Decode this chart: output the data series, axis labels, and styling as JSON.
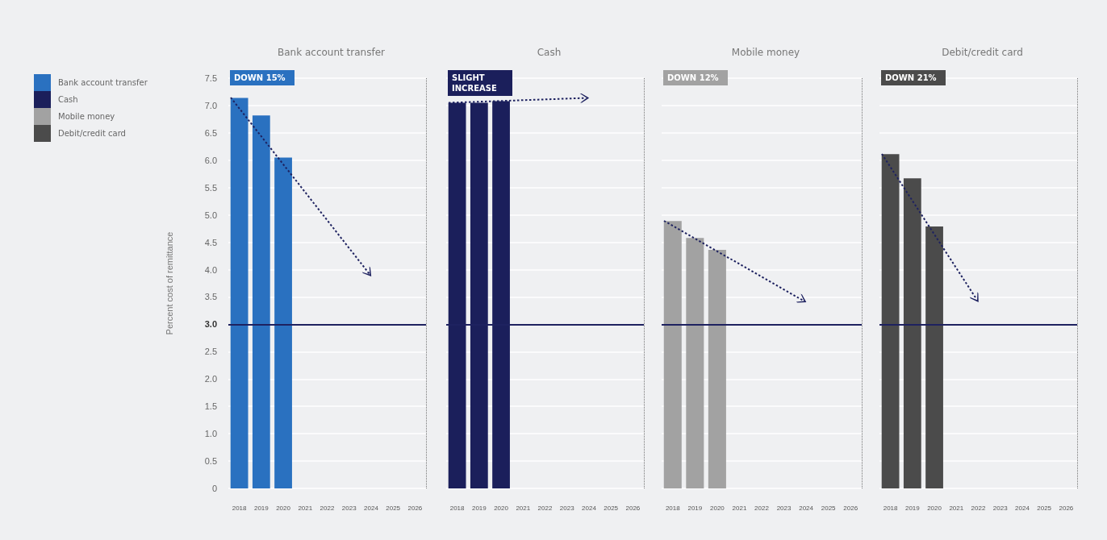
{
  "chart_data": [
    {
      "type": "bar",
      "title": "Bank account transfer",
      "ylabel": "Percent cost of remittance",
      "annotations": [
        "DOWN 15%"
      ],
      "categories": [
        "2018",
        "2019",
        "2020",
        "2021",
        "2022",
        "2023",
        "2024",
        "2025",
        "2026"
      ],
      "series": [
        {
          "name": "Bank account transfer",
          "color": "#2a71c0",
          "values": [
            7.14,
            6.82,
            6.05,
            null,
            null,
            null,
            null,
            null,
            null
          ]
        }
      ],
      "ylim": [
        0,
        7.5
      ],
      "yticks": [
        0,
        0.5,
        {
          "value": 1,
          "label": "1.0"
        },
        1.5,
        {
          "value": 2,
          "label": "2.0"
        },
        2.5,
        {
          "value": 3,
          "label": "3.0"
        },
        3.5,
        {
          "value": 4,
          "label": "4.0"
        },
        4.5,
        {
          "value": 5,
          "label": "5.0"
        },
        5.5,
        {
          "value": 6,
          "label": "6.0"
        },
        6.5,
        {
          "value": 7,
          "label": "7.0"
        },
        7.5
      ],
      "ref_lines": [
        {
          "axis": "y",
          "value": 3,
          "color": "#1e2260"
        }
      ],
      "grid": "y",
      "legend": "left"
    },
    {
      "type": "bar",
      "title": "Cash",
      "annotations": [
        "SLIGHT INCREASE"
      ],
      "categories": [
        "2018",
        "2019",
        "2020",
        "2021",
        "2022",
        "2023",
        "2024",
        "2025",
        "2026"
      ],
      "series": [
        {
          "name": "Cash",
          "color": "#1b1f5b",
          "values": [
            7.05,
            7.05,
            7.08,
            null,
            null,
            null,
            null,
            null,
            null
          ]
        }
      ],
      "ylim": [
        0,
        7.5
      ],
      "yticks": [
        0,
        0.5,
        1,
        1.5,
        2,
        2.5,
        3,
        3.5,
        4,
        4.5,
        5,
        5.5,
        6,
        6.5,
        7,
        7.5
      ],
      "ref_lines": [
        {
          "axis": "y",
          "value": 3,
          "color": "#1e2260"
        }
      ],
      "grid": "y",
      "legend": "left",
      "tick_labels": "x"
    },
    {
      "type": "bar",
      "title": "Mobile money",
      "annotations": [
        "DOWN 12%"
      ],
      "categories": [
        "2018",
        "2019",
        "2020",
        "2021",
        "2022",
        "2023",
        "2024",
        "2025",
        "2026"
      ],
      "series": [
        {
          "name": "Mobile money",
          "color": "#a2a2a2",
          "values": [
            4.89,
            4.58,
            4.36,
            null,
            null,
            null,
            null,
            null,
            null
          ]
        }
      ],
      "ylim": [
        0,
        7.5
      ],
      "yticks": [
        0,
        0.5,
        1,
        1.5,
        2,
        2.5,
        3,
        3.5,
        4,
        4.5,
        5,
        5.5,
        6,
        6.5,
        7,
        7.5
      ],
      "ref_lines": [
        {
          "axis": "y",
          "value": 3,
          "color": "#1e2260"
        }
      ],
      "grid": "y",
      "legend": "left",
      "tick_labels": "x"
    },
    {
      "type": "bar",
      "title": "Debit/credit card",
      "annotations": [
        "DOWN 21%"
      ],
      "categories": [
        "2018",
        "2019",
        "2020",
        "2021",
        "2022",
        "2023",
        "2024",
        "2025",
        "2026"
      ],
      "series": [
        {
          "name": "Debit/credit card",
          "color": "#4b4b4b",
          "values": [
            6.11,
            5.67,
            4.79,
            null,
            null,
            null,
            null,
            null,
            null
          ]
        }
      ],
      "ylim": [
        0,
        7.5
      ],
      "yticks": [
        0,
        0.5,
        1,
        1.5,
        2,
        2.5,
        3,
        3.5,
        4,
        4.5,
        5,
        5.5,
        6,
        6.5,
        7,
        7.5
      ],
      "ref_lines": [
        {
          "axis": "y",
          "value": 3,
          "color": "#1e2260"
        }
      ],
      "grid": "y",
      "legend": "left",
      "tick_labels": "x"
    }
  ]
}
